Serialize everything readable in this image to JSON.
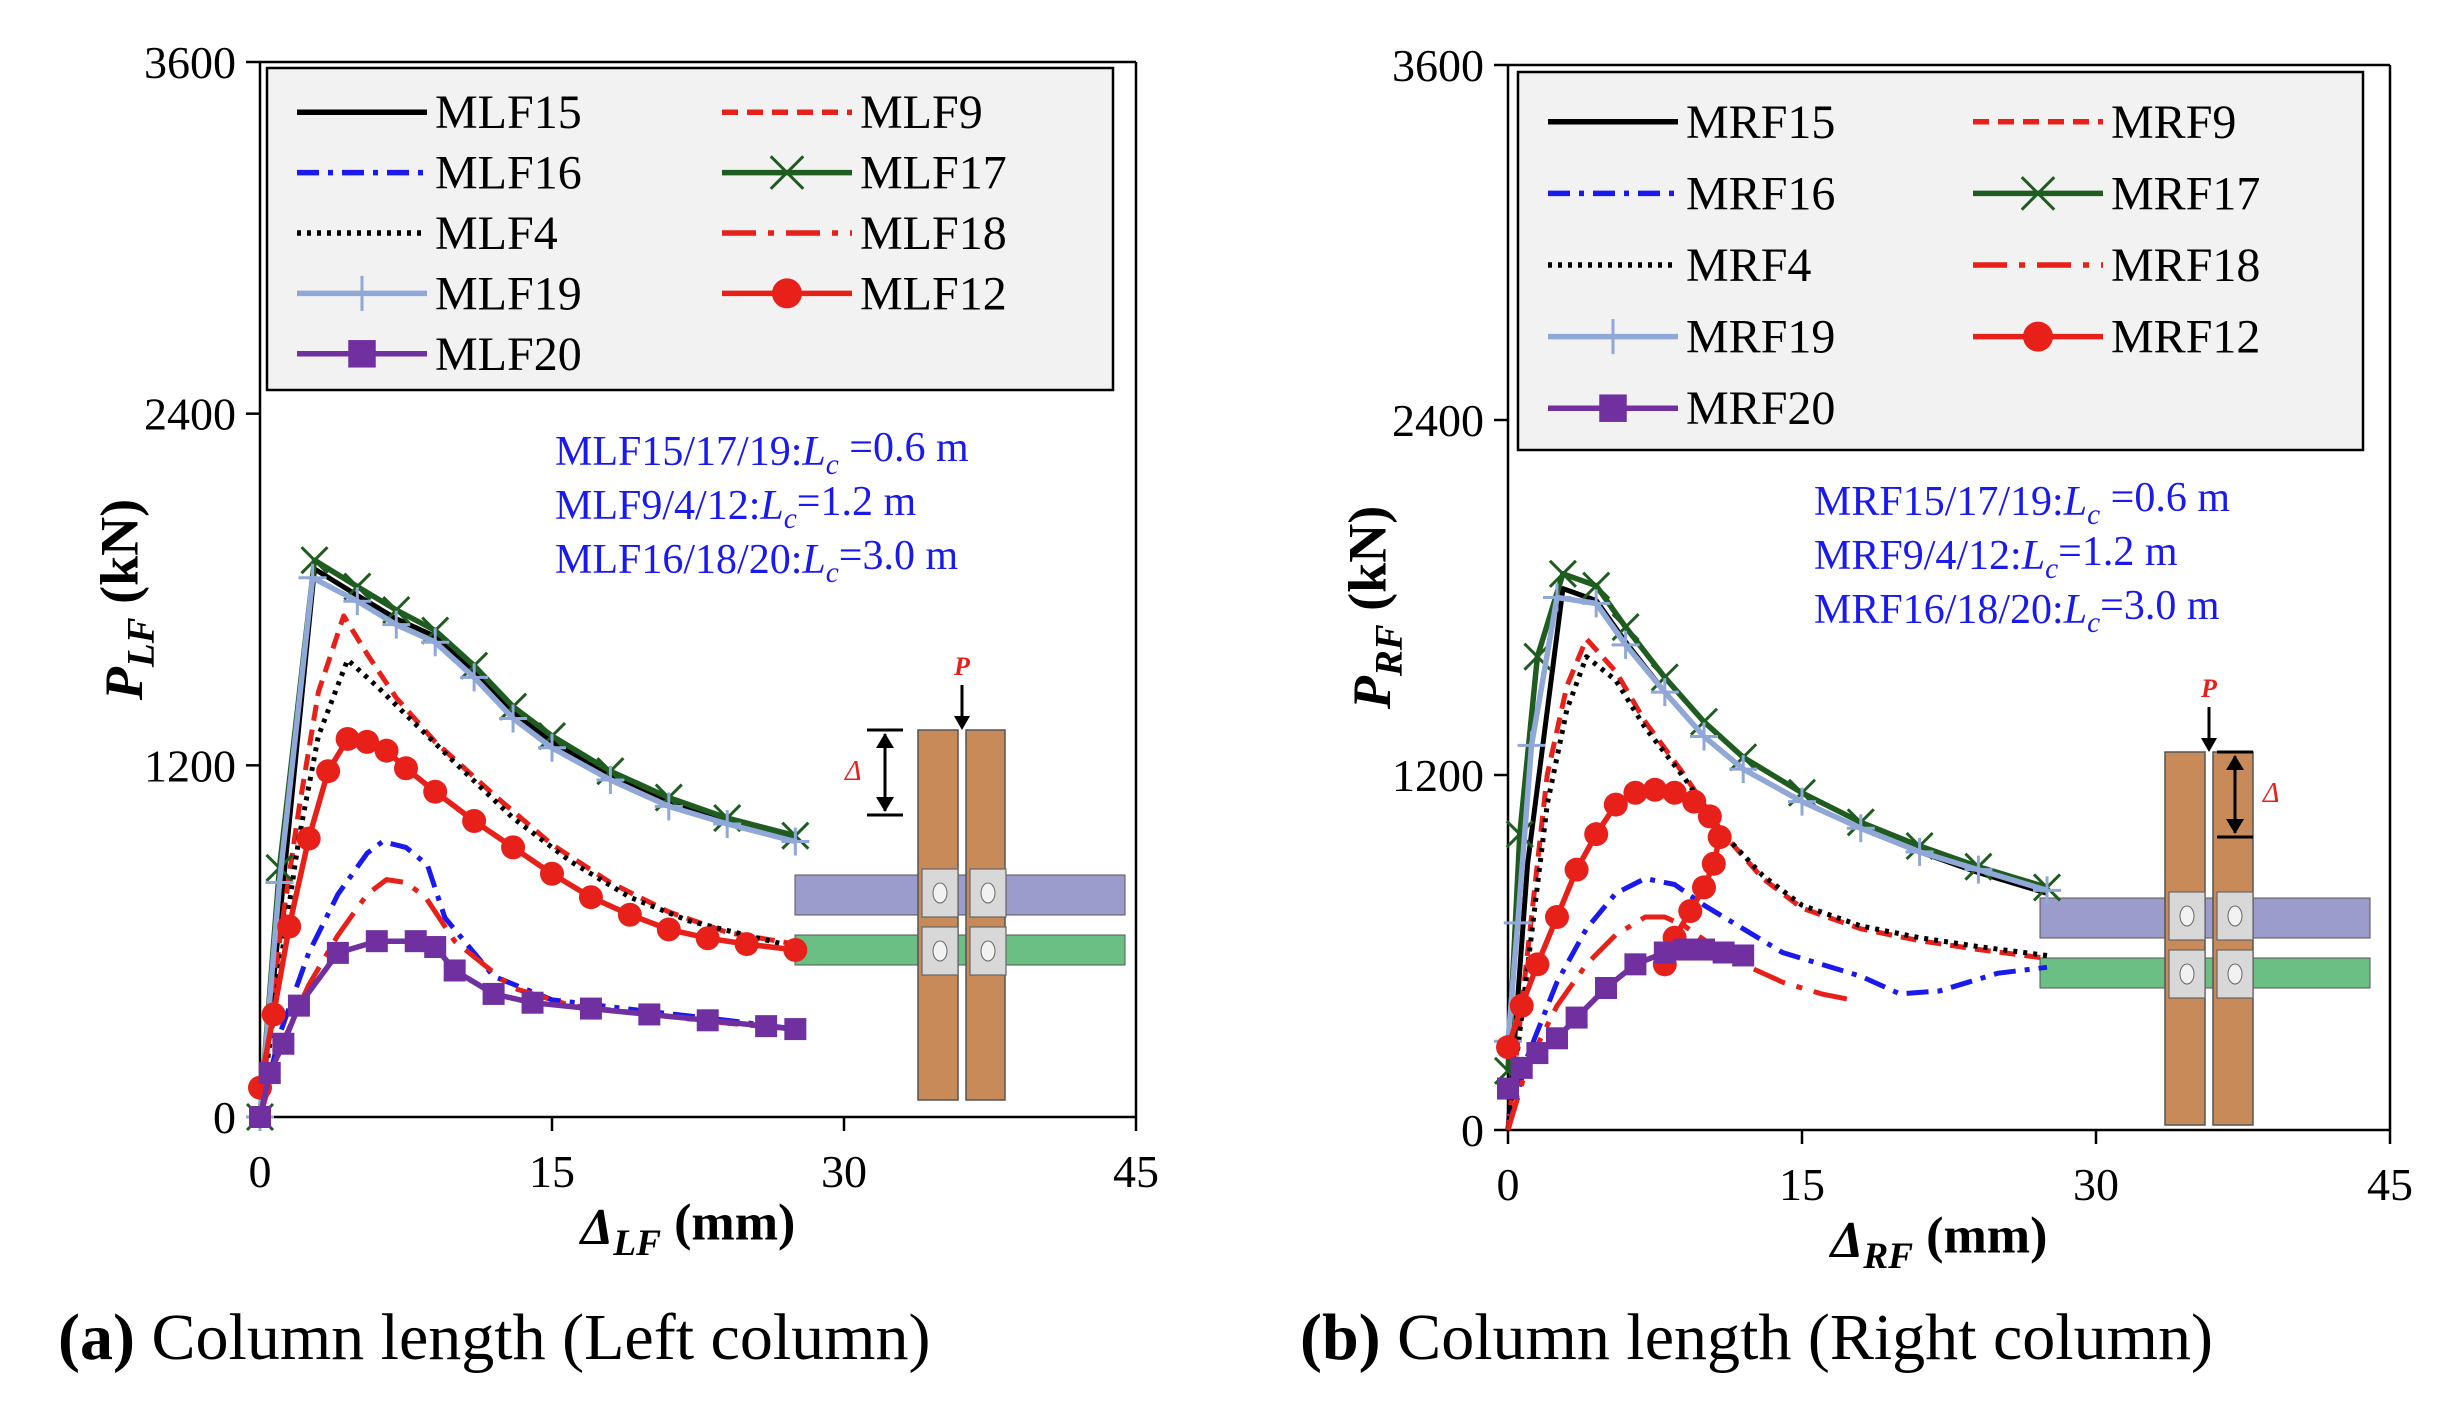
{
  "captions": [
    {
      "label": "(a)",
      "text": "Column length (Left column)"
    },
    {
      "label": "(b)",
      "text": "Column length (Right column)"
    }
  ],
  "chart_data": [
    {
      "type": "line",
      "panel": "a",
      "xlabel_symbol": "Δ",
      "xlabel_sub": "LF",
      "xlabel_unit": "(mm)",
      "ylabel_symbol": "P",
      "ylabel_sub": "LF",
      "ylabel_unit": "(kN)",
      "xlim": [
        0,
        45
      ],
      "ylim": [
        0,
        3600
      ],
      "xticks": [
        0,
        15,
        30,
        45
      ],
      "yticks": [
        0,
        1200,
        2400,
        3600
      ],
      "legend_position": "top",
      "annotations": [
        {
          "prefix": "MLF15/17/19:",
          "var": "L",
          "sub": "c",
          "value": " =0.6 m"
        },
        {
          "prefix": "MLF9/4/12:",
          "var": "L",
          "sub": "c",
          "value": "=1.2  m"
        },
        {
          "prefix": "MLF16/18/20:",
          "var": "L",
          "sub": "c",
          "value": "=3.0  m"
        }
      ],
      "inset": {
        "load": "P",
        "disp": "Δ"
      },
      "series": [
        {
          "name": "MLF15",
          "color": "#000000",
          "style": "solid",
          "marker": "none",
          "x": [
            0,
            2.8,
            5,
            7,
            9,
            11,
            13,
            15,
            18,
            21,
            24,
            27.5
          ],
          "y": [
            0,
            1870,
            1780,
            1700,
            1640,
            1520,
            1380,
            1280,
            1170,
            1080,
            1010,
            950
          ]
        },
        {
          "name": "MLF9",
          "color": "#e8201a",
          "style": "dash",
          "marker": "none",
          "x": [
            0,
            1,
            2,
            3,
            4.3,
            5.5,
            7,
            9,
            12,
            15,
            18,
            21,
            24,
            27.5
          ],
          "y": [
            0,
            600,
            1050,
            1450,
            1710,
            1580,
            1430,
            1280,
            1100,
            930,
            800,
            700,
            630,
            590
          ]
        },
        {
          "name": "MLF16",
          "color": "#1a1aee",
          "style": "dashdot",
          "marker": "none",
          "x": [
            0,
            1,
            2.5,
            4,
            5.5,
            6.3,
            7.5,
            8.6,
            9.5,
            12,
            15,
            20,
            24,
            27.5
          ],
          "y": [
            0,
            280,
            560,
            760,
            900,
            940,
            920,
            860,
            680,
            480,
            400,
            360,
            330,
            300
          ]
        },
        {
          "name": "MLF17",
          "color": "#1f5c1f",
          "style": "solid",
          "marker": "x",
          "x": [
            0,
            1,
            2.8,
            5,
            7,
            9,
            11,
            13,
            15,
            18,
            21,
            24,
            27.5
          ],
          "y": [
            0,
            850,
            1900,
            1810,
            1730,
            1660,
            1540,
            1400,
            1300,
            1180,
            1090,
            1020,
            960
          ]
        },
        {
          "name": "MLF4",
          "color": "#000000",
          "style": "dot",
          "marker": "none",
          "x": [
            0,
            1,
            2,
            3,
            4.5,
            6,
            8,
            10,
            13,
            16,
            19,
            22,
            25,
            27.5
          ],
          "y": [
            0,
            500,
            950,
            1300,
            1560,
            1470,
            1340,
            1210,
            1020,
            870,
            750,
            670,
            620,
            580
          ]
        },
        {
          "name": "MLF18",
          "color": "#e8201a",
          "style": "longdashdot",
          "marker": "none",
          "x": [
            0,
            1,
            2.5,
            4,
            5.5,
            6.5,
            7.5,
            8.5,
            10,
            13,
            16,
            20,
            24,
            27.5
          ],
          "y": [
            0,
            230,
            450,
            620,
            760,
            810,
            800,
            750,
            600,
            440,
            380,
            350,
            320,
            300
          ]
        },
        {
          "name": "MLF19",
          "color": "#8fa8d8",
          "style": "solid",
          "marker": "plus",
          "x": [
            0,
            1,
            2.7,
            5,
            7,
            9,
            11,
            13,
            15,
            18,
            21,
            24,
            27.5
          ],
          "y": [
            0,
            800,
            1840,
            1760,
            1680,
            1620,
            1500,
            1360,
            1260,
            1150,
            1060,
            1000,
            940
          ]
        },
        {
          "name": "MLF12",
          "color": "#e8201a",
          "style": "solid",
          "marker": "circle",
          "x": [
            0,
            0.7,
            1.5,
            2.5,
            3.5,
            4.5,
            5.5,
            6.5,
            7.5,
            9,
            11,
            13,
            15,
            17,
            19,
            21,
            23,
            25,
            27.5
          ],
          "y": [
            100,
            350,
            650,
            950,
            1180,
            1290,
            1280,
            1250,
            1190,
            1110,
            1010,
            920,
            830,
            750,
            690,
            640,
            610,
            590,
            570
          ]
        },
        {
          "name": "MLF20",
          "color": "#7030a0",
          "style": "solid",
          "marker": "square",
          "x": [
            0,
            0.5,
            1.2,
            2,
            4,
            6,
            8,
            9,
            10,
            12,
            14,
            17,
            20,
            23,
            26,
            27.5
          ],
          "y": [
            0,
            150,
            250,
            380,
            560,
            600,
            600,
            580,
            500,
            420,
            390,
            370,
            350,
            330,
            310,
            300
          ]
        }
      ]
    },
    {
      "type": "line",
      "panel": "b",
      "xlabel_symbol": "Δ",
      "xlabel_sub": "RF",
      "xlabel_unit": "(mm)",
      "ylabel_symbol": "P",
      "ylabel_sub": "RF",
      "ylabel_unit": "(kN)",
      "xlim": [
        0,
        45
      ],
      "ylim": [
        0,
        3600
      ],
      "xticks": [
        0,
        15,
        30,
        45
      ],
      "yticks": [
        0,
        1200,
        2400,
        3600
      ],
      "legend_position": "top",
      "annotations": [
        {
          "prefix": "MRF15/17/19:",
          "var": "L",
          "sub": "c",
          "value": " =0.6 m"
        },
        {
          "prefix": "MRF9/4/12:",
          "var": "L",
          "sub": "c",
          "value": "=1.2  m"
        },
        {
          "prefix": "MRF16/18/20:",
          "var": "L",
          "sub": "c",
          "value": "=3.0  m"
        }
      ],
      "inset": {
        "load": "P",
        "disp": "Δ"
      },
      "series": [
        {
          "name": "MRF15",
          "color": "#000000",
          "style": "solid",
          "marker": "none",
          "x": [
            0,
            1,
            2.8,
            4.5,
            6,
            8,
            10,
            12,
            15,
            18,
            21,
            24,
            27.5
          ],
          "y": [
            0,
            900,
            1830,
            1790,
            1650,
            1480,
            1330,
            1220,
            1110,
            1020,
            940,
            870,
            800
          ]
        },
        {
          "name": "MRF9",
          "color": "#e8201a",
          "style": "dash",
          "marker": "none",
          "x": [
            0,
            1,
            2,
            3,
            4,
            5.5,
            7,
            9,
            11,
            13,
            15,
            18,
            21,
            24,
            27.5
          ],
          "y": [
            0,
            600,
            1200,
            1500,
            1660,
            1550,
            1380,
            1200,
            1000,
            850,
            750,
            680,
            640,
            610,
            580
          ]
        },
        {
          "name": "MRF16",
          "color": "#1a1aee",
          "style": "dashdot",
          "marker": "none",
          "x": [
            0,
            1,
            2.5,
            4,
            5.5,
            7,
            8.5,
            10,
            12,
            14,
            16,
            18,
            20,
            22,
            25,
            27.5
          ],
          "y": [
            0,
            250,
            500,
            680,
            800,
            850,
            830,
            760,
            680,
            600,
            560,
            520,
            460,
            470,
            530,
            550
          ]
        },
        {
          "name": "MRF17",
          "color": "#1f5c1f",
          "style": "solid",
          "marker": "x",
          "x": [
            0,
            0.6,
            1.5,
            2.8,
            4.5,
            6,
            8,
            10,
            12,
            15,
            18,
            21,
            24,
            27.5
          ],
          "y": [
            200,
            1000,
            1600,
            1880,
            1840,
            1700,
            1530,
            1380,
            1260,
            1140,
            1040,
            960,
            890,
            820
          ]
        },
        {
          "name": "MRF4",
          "color": "#000000",
          "style": "dot",
          "marker": "none",
          "x": [
            0,
            1,
            2,
            3,
            4,
            5.5,
            7,
            9,
            11,
            13,
            15,
            18,
            21,
            24,
            27.5
          ],
          "y": [
            0,
            550,
            1100,
            1420,
            1600,
            1520,
            1360,
            1190,
            1000,
            860,
            760,
            690,
            650,
            620,
            590
          ]
        },
        {
          "name": "MRF18",
          "color": "#e8201a",
          "style": "longdashdot",
          "marker": "none",
          "x": [
            0,
            1,
            2.5,
            4,
            5.5,
            7,
            8,
            9,
            10.5,
            12,
            14,
            16,
            17.5
          ],
          "y": [
            0,
            220,
            420,
            560,
            660,
            720,
            720,
            690,
            620,
            560,
            500,
            460,
            440
          ]
        },
        {
          "name": "MRF19",
          "color": "#8fa8d8",
          "style": "solid",
          "marker": "plus",
          "x": [
            0,
            0.5,
            1.2,
            2.5,
            4.5,
            6,
            8,
            10,
            12,
            15,
            18,
            21,
            24,
            27.5
          ],
          "y": [
            300,
            700,
            1300,
            1800,
            1780,
            1640,
            1480,
            1330,
            1220,
            1110,
            1020,
            940,
            880,
            810
          ]
        },
        {
          "name": "MRF12",
          "color": "#e8201a",
          "style": "solid",
          "marker": "circle",
          "x": [
            0,
            0.7,
            1.5,
            2.5,
            3.5,
            4.5,
            5.5,
            6.5,
            7.5,
            8.5,
            9.5,
            10.3,
            10.8,
            10.5,
            10,
            9.3,
            8.5,
            8
          ],
          "y": [
            280,
            420,
            560,
            720,
            880,
            1000,
            1100,
            1140,
            1150,
            1140,
            1110,
            1060,
            990,
            900,
            820,
            740,
            650,
            560
          ]
        },
        {
          "name": "MRF20",
          "color": "#7030a0",
          "style": "solid",
          "marker": "square",
          "x": [
            0,
            0.7,
            1.5,
            2.5,
            3.5,
            5,
            6.5,
            8,
            9,
            10,
            11,
            12
          ],
          "y": [
            140,
            210,
            260,
            310,
            380,
            480,
            560,
            600,
            610,
            610,
            600,
            590
          ]
        }
      ]
    }
  ]
}
